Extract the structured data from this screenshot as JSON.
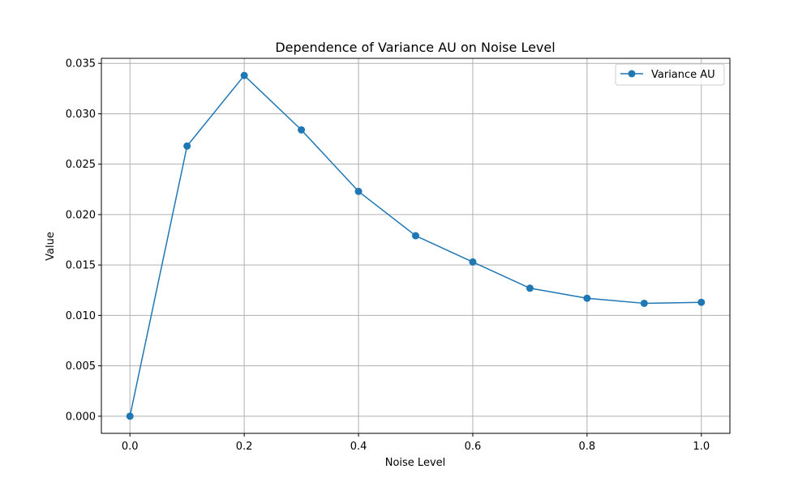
{
  "chart_data": {
    "type": "line",
    "title": "Dependence of Variance AU on Noise Level",
    "xlabel": "Noise Level",
    "ylabel": "Value",
    "xlim": [
      -0.05,
      1.05
    ],
    "ylim": [
      -0.0017,
      0.0355
    ],
    "x_ticks": [
      0.0,
      0.2,
      0.4,
      0.6,
      0.8,
      1.0
    ],
    "x_tick_labels": [
      "0.0",
      "0.2",
      "0.4",
      "0.6",
      "0.8",
      "1.0"
    ],
    "y_ticks": [
      0.0,
      0.005,
      0.01,
      0.015,
      0.02,
      0.025,
      0.03,
      0.035
    ],
    "y_tick_labels": [
      "0.000",
      "0.005",
      "0.010",
      "0.015",
      "0.020",
      "0.025",
      "0.030",
      "0.035"
    ],
    "grid": true,
    "legend_position": "top-right",
    "series": [
      {
        "name": "Variance AU",
        "color": "#1f77b4",
        "marker": "circle",
        "x": [
          0.0,
          0.1,
          0.2,
          0.3,
          0.4,
          0.5,
          0.6,
          0.7,
          0.8,
          0.9,
          1.0
        ],
        "y": [
          0.0,
          0.0268,
          0.0338,
          0.0284,
          0.0223,
          0.0179,
          0.0153,
          0.0127,
          0.0117,
          0.0112,
          0.0113
        ]
      }
    ]
  }
}
